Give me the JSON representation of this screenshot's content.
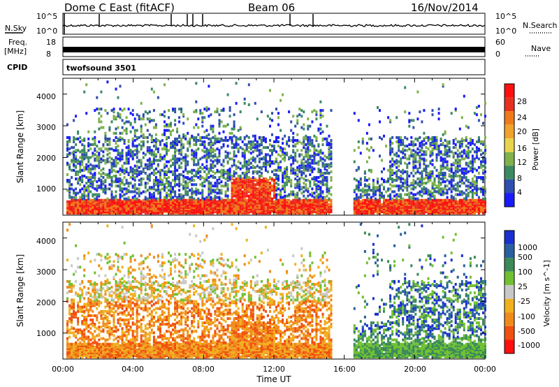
{
  "header": {
    "station": "Dome C East (fitACF)",
    "beam": "Beam 06",
    "date": "16/Nov/2014"
  },
  "left_labels": {
    "nsky": "N.Sky",
    "freq": "Freq.",
    "freq_unit": "[MHz]",
    "cpid": "CPID"
  },
  "right_labels": {
    "nsearch": "N.Search",
    "nave": "Nave"
  },
  "cpid_program": "twofsound 3501",
  "colors": {
    "power": [
      "#1a1aff",
      "#2f4fb0",
      "#3c8a62",
      "#7fb24a",
      "#e8d44a",
      "#f0a32a",
      "#f07a1a",
      "#e83020",
      "#ff1010"
    ],
    "velocity": [
      "#1a2fd0",
      "#2a60a0",
      "#3a8a5a",
      "#70c030",
      "#c8c8c8",
      "#f0b020",
      "#f08a1a",
      "#f05010",
      "#ff1010"
    ],
    "axis": "#000000"
  },
  "chart_data": [
    {
      "type": "line",
      "name": "noise-panel",
      "ylabels": [
        "10^5",
        "10^0"
      ],
      "right_ylabels": [
        "10^5",
        "10^0"
      ],
      "series": [
        {
          "name": "N.Sky",
          "values": "near 10^0 throughout with spikes near 02:00, 06:00, 07:30, 13:00, 14:20"
        },
        {
          "name": "N.Search",
          "values": "dotted baseline"
        }
      ]
    },
    {
      "type": "line",
      "name": "freq-panel",
      "ylabels": [
        "18",
        "8"
      ],
      "right_ylabels": [
        "60",
        "0"
      ],
      "series": [
        {
          "name": "Freq.",
          "values": "alternating 8 and 10 MHz (dense band)"
        },
        {
          "name": "Nave",
          "values": "dotted"
        }
      ]
    },
    {
      "type": "heatmap",
      "name": "power",
      "ylabel": "Slant Range [km]",
      "ylim": [
        180,
        4500
      ],
      "yticks": [
        "1000",
        "2000",
        "3000",
        "4000"
      ],
      "xlim": [
        "00:00",
        "24:00"
      ],
      "colorbar_label": "Power [dB]",
      "colorbar_ticks": [
        "4",
        "8",
        "12",
        "16",
        "20",
        "24",
        "28"
      ],
      "regions": [
        {
          "t0": 0.2,
          "t1": 9.8,
          "r0": 300,
          "r1": 600,
          "level": "high"
        },
        {
          "t0": 9.5,
          "t1": 12.0,
          "r0": 300,
          "r1": 1200,
          "level": "high"
        },
        {
          "t0": 16.5,
          "t1": 18.5,
          "r0": 300,
          "r1": 700,
          "level": "high"
        },
        {
          "t0": 19.3,
          "t1": 21.5,
          "r0": 300,
          "r1": 700,
          "level": "high"
        },
        {
          "t0": 0.2,
          "t1": 24.0,
          "r0": 600,
          "r1": 2600,
          "level": "low"
        }
      ]
    },
    {
      "type": "heatmap",
      "name": "velocity",
      "ylabel": "Slant Range [km]",
      "xlabel": "Time UT",
      "ylim": [
        180,
        4500
      ],
      "yticks": [
        "1000",
        "2000",
        "3000",
        "4000"
      ],
      "xticks": [
        "00:00",
        "04:00",
        "08:00",
        "12:00",
        "16:00",
        "20:00",
        "00:00"
      ],
      "colorbar_label": "Velocity [m s^-1]",
      "colorbar_ticks": [
        "1000",
        "500",
        "100",
        "25",
        "-25",
        "-100",
        "-500",
        "-1000"
      ],
      "regions": [
        {
          "t0": 0.2,
          "t1": 12.0,
          "r0": 300,
          "r1": 1500,
          "level": "negative"
        },
        {
          "t0": 15.5,
          "t1": 24.0,
          "r0": 300,
          "r1": 800,
          "level": "positive"
        }
      ]
    }
  ]
}
